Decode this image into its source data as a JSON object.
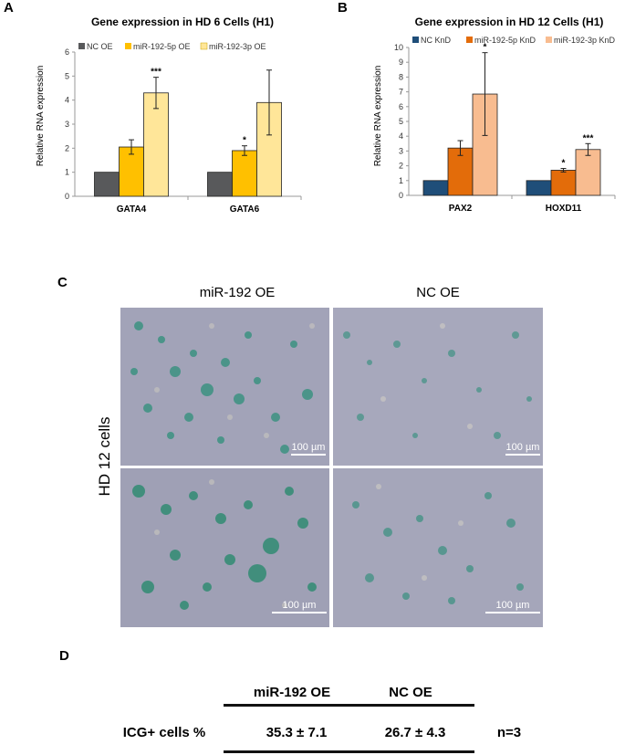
{
  "panels": {
    "a": "A",
    "b": "B",
    "c": "C",
    "d": "D"
  },
  "chart_data": [
    {
      "type": "bar",
      "title": "Gene expression in HD 6 Cells (H1)",
      "ylabel": "Relative RNA expression",
      "xlabel": "",
      "ylim": [
        0,
        6
      ],
      "yticks": [
        "0",
        "1",
        "2",
        "3",
        "4",
        "5",
        "6"
      ],
      "categories": [
        "GATA4",
        "GATA6"
      ],
      "legend_position": "top",
      "series": [
        {
          "name": "NC OE",
          "color": "#58595b",
          "values": [
            1,
            1
          ],
          "errors": [
            0,
            0
          ],
          "sig": [
            "",
            ""
          ]
        },
        {
          "name": "miR-192-5p OE",
          "color": "#ffc000",
          "values": [
            2.05,
            1.9
          ],
          "errors": [
            0.3,
            0.2
          ],
          "sig": [
            "",
            "*"
          ]
        },
        {
          "name": "miR-192-3p OE",
          "color": "#ffe699",
          "values": [
            4.3,
            3.9
          ],
          "errors": [
            0.65,
            1.35
          ],
          "sig": [
            "***",
            ""
          ]
        }
      ]
    },
    {
      "type": "bar",
      "title": "Gene expression in HD 12 Cells (H1)",
      "ylabel": "Relative RNA expression",
      "xlabel": "",
      "ylim": [
        0,
        10
      ],
      "yticks": [
        "0",
        "1",
        "2",
        "3",
        "4",
        "5",
        "6",
        "7",
        "8",
        "9",
        "10"
      ],
      "categories": [
        "PAX2",
        "HOXD11"
      ],
      "legend_position": "top",
      "series": [
        {
          "name": "NC KnD",
          "color": "#1f4e79",
          "values": [
            1,
            1
          ],
          "errors": [
            0,
            0
          ],
          "sig": [
            "",
            ""
          ]
        },
        {
          "name": "miR-192-5p KnD",
          "color": "#e36c0a",
          "values": [
            3.2,
            1.7
          ],
          "errors": [
            0.5,
            0.12
          ],
          "sig": [
            "",
            "*"
          ]
        },
        {
          "name": "miR-192-3p KnD",
          "color": "#f8bc90",
          "values": [
            6.85,
            3.1
          ],
          "errors": [
            2.8,
            0.4
          ],
          "sig": [
            "*",
            "***"
          ]
        }
      ]
    }
  ],
  "micrographs": {
    "col_left": "miR-192 OE",
    "col_right": "NC OE",
    "row_label": "HD 12 cells",
    "scale_bar": "100 µm"
  },
  "table": {
    "headers": [
      "miR-192 OE",
      "NC OE"
    ],
    "row_label": "ICG+ cells %",
    "values": [
      "35.3 ± 7.1",
      "26.7 ± 4.3"
    ],
    "n": "n=3"
  }
}
